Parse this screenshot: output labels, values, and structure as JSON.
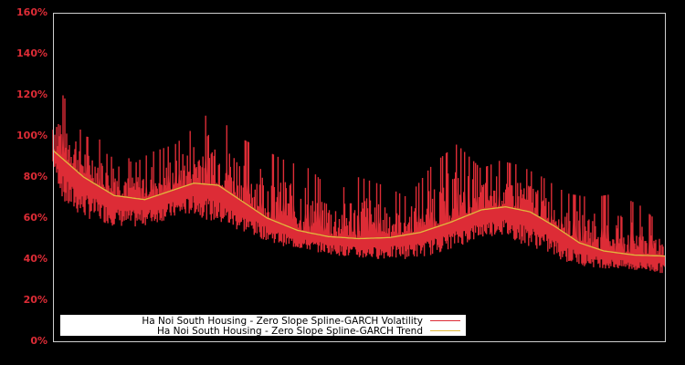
{
  "chart_data": {
    "type": "line",
    "title": "",
    "xlabel": "",
    "ylabel": "",
    "ylim": [
      0,
      160
    ],
    "y_ticks": [
      "0%",
      "20%",
      "40%",
      "60%",
      "80%",
      "100%",
      "120%",
      "140%",
      "160%"
    ],
    "y_tick_values": [
      0,
      20,
      40,
      60,
      80,
      100,
      120,
      140,
      160
    ],
    "grid": false,
    "legend_position": "lower-left",
    "background": "#000000",
    "series": [
      {
        "name": "Ha Noi South Housing - Zero Slope Spline-GARCH Volatility",
        "color": "#dd2c36",
        "style": "dense-spiky-line",
        "x_frac": [
          0.0,
          0.02,
          0.05,
          0.08,
          0.1,
          0.13,
          0.16,
          0.2,
          0.23,
          0.26,
          0.3,
          0.34,
          0.38,
          0.42,
          0.46,
          0.5,
          0.54,
          0.58,
          0.62,
          0.66,
          0.7,
          0.73,
          0.76,
          0.8,
          0.84,
          0.88,
          0.92,
          0.96,
          1.0
        ],
        "upper": [
          128,
          118,
          100,
          98,
          102,
          86,
          92,
          96,
          104,
          113,
          100,
          94,
          88,
          84,
          72,
          80,
          76,
          70,
          86,
          96,
          84,
          88,
          86,
          80,
          72,
          70,
          72,
          66,
          55
        ],
        "lower": [
          85,
          65,
          60,
          58,
          56,
          55,
          57,
          60,
          62,
          58,
          54,
          50,
          46,
          44,
          42,
          40,
          40,
          40,
          42,
          46,
          50,
          52,
          48,
          44,
          38,
          36,
          35,
          34,
          33
        ]
      },
      {
        "name": "Ha Noi South Housing - Zero Slope Spline-GARCH Trend",
        "color": "#e0b93c",
        "style": "smooth-line",
        "x_frac": [
          0.0,
          0.05,
          0.1,
          0.15,
          0.2,
          0.23,
          0.27,
          0.3,
          0.35,
          0.4,
          0.45,
          0.5,
          0.55,
          0.6,
          0.65,
          0.7,
          0.74,
          0.78,
          0.82,
          0.86,
          0.9,
          0.95,
          1.0
        ],
        "values": [
          93,
          80,
          71,
          69,
          74,
          77,
          76,
          70,
          60,
          54,
          51,
          50,
          50.5,
          53,
          58,
          64,
          65.5,
          63,
          56,
          48,
          44,
          42,
          41.5
        ]
      }
    ]
  },
  "legend": {
    "items": [
      {
        "label": "Ha Noi South Housing - Zero Slope Spline-GARCH Volatility",
        "color": "#dd2c36"
      },
      {
        "label": "Ha Noi South Housing - Zero Slope Spline-GARCH Trend",
        "color": "#e0b93c"
      }
    ]
  }
}
